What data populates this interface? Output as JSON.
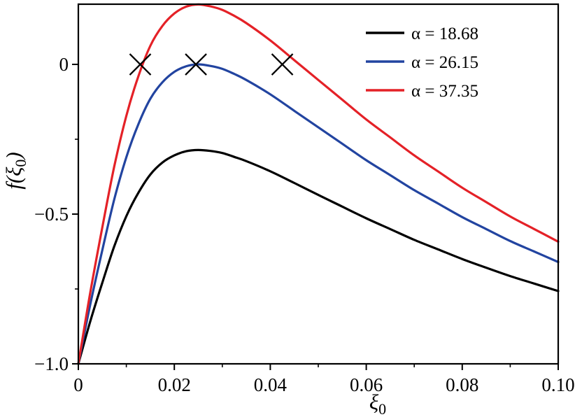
{
  "chart_data": {
    "type": "line",
    "title": "",
    "xlabel": {
      "text": "ξ",
      "sub": "0"
    },
    "ylabel": {
      "pre": "f(",
      "sym": "ξ",
      "sub": "0",
      "post": ")"
    },
    "x_range": [
      0,
      0.1
    ],
    "y_range": [
      -1.0,
      0.201
    ],
    "x_ticks": [
      {
        "v": 0.0,
        "label": "0"
      },
      {
        "v": 0.02,
        "label": "0.02"
      },
      {
        "v": 0.04,
        "label": "0.04"
      },
      {
        "v": 0.06,
        "label": "0.06"
      },
      {
        "v": 0.08,
        "label": "0.08"
      },
      {
        "v": 0.1,
        "label": "0.10"
      }
    ],
    "x_minor": [
      0.01,
      0.03,
      0.05,
      0.07,
      0.09
    ],
    "y_ticks": [
      {
        "v": 0.0,
        "label": "0"
      },
      {
        "v": -0.5,
        "label": "−0.5"
      },
      {
        "v": -1.0,
        "label": "−1.0"
      }
    ],
    "y_minor": [
      -0.25,
      -0.75
    ],
    "grid": false,
    "legend_position": "upper right",
    "x": [
      0,
      0.0025,
      0.005,
      0.0075,
      0.01,
      0.0125,
      0.015,
      0.0175,
      0.02,
      0.0225,
      0.025,
      0.0275,
      0.03,
      0.0325,
      0.035,
      0.04,
      0.045,
      0.05,
      0.055,
      0.06,
      0.065,
      0.07,
      0.075,
      0.08,
      0.085,
      0.09,
      0.095,
      0.1
    ],
    "series": [
      {
        "name": "α = 18.68",
        "color": "#000000",
        "y": [
          -1,
          -0.857,
          -0.729,
          -0.607,
          -0.507,
          -0.429,
          -0.368,
          -0.328,
          -0.304,
          -0.29,
          -0.286,
          -0.289,
          -0.296,
          -0.309,
          -0.323,
          -0.357,
          -0.396,
          -0.436,
          -0.475,
          -0.514,
          -0.55,
          -0.586,
          -0.618,
          -0.65,
          -0.679,
          -0.707,
          -0.732,
          -0.757
        ]
      },
      {
        "name": "α = 26.15",
        "color": "#2244a0",
        "y": [
          -1,
          -0.8,
          -0.62,
          -0.45,
          -0.31,
          -0.2,
          -0.115,
          -0.06,
          -0.025,
          -0.006,
          0,
          -0.005,
          -0.015,
          -0.032,
          -0.052,
          -0.1,
          -0.155,
          -0.21,
          -0.265,
          -0.32,
          -0.37,
          -0.42,
          -0.465,
          -0.51,
          -0.55,
          -0.59,
          -0.625,
          -0.66
        ]
      },
      {
        "name": "α = 37.35",
        "color": "#e42127",
        "y": [
          -1,
          -0.76,
          -0.544,
          -0.34,
          -0.172,
          -0.04,
          0.062,
          0.128,
          0.17,
          0.193,
          0.2,
          0.194,
          0.182,
          0.162,
          0.138,
          0.08,
          0.014,
          -0.052,
          -0.118,
          -0.184,
          -0.244,
          -0.304,
          -0.358,
          -0.412,
          -0.46,
          -0.508,
          -0.55,
          -0.592
        ]
      }
    ],
    "markers": {
      "symbol": "x",
      "color": "#000000",
      "points": [
        [
          0.0129,
          0
        ],
        [
          0.0245,
          0
        ],
        [
          0.0425,
          0
        ]
      ]
    }
  }
}
